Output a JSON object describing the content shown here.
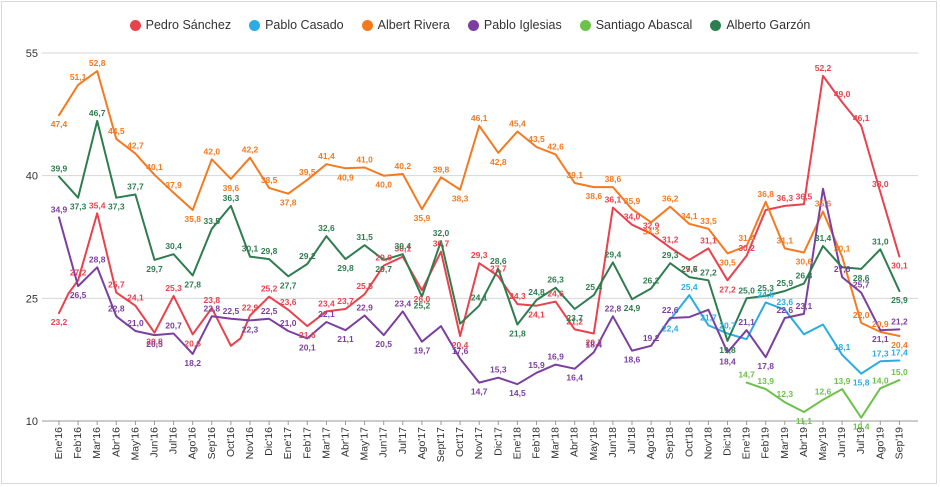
{
  "chart_data": {
    "type": "line",
    "categories": [
      "Ene'16",
      "Feb'16",
      "Mar'16",
      "Abr'16",
      "May'16",
      "Jun'16",
      "Jul'16",
      "Ago'16",
      "Sep'16",
      "Oct'16",
      "Nov'16",
      "Dic'16",
      "Ene'17",
      "Feb'17",
      "Mar'17",
      "Abr'17",
      "May'17",
      "Jun'17",
      "Jul'17",
      "Ago'17",
      "Sept'17",
      "Oct'17",
      "Nov'17",
      "Dic'17",
      "Ene'18",
      "Feb'18",
      "Mar'18",
      "Abr'18",
      "May'18",
      "Jun'18",
      "Jul'18",
      "Ago'18",
      "Sep'18",
      "Oct'18",
      "Nov'18",
      "Dic'18",
      "Ene'19",
      "Feb'19",
      "Mar'19",
      "Abr'19",
      "May'19",
      "Jun'19",
      "Jul'19",
      "Ago'19",
      "Sep'19"
    ],
    "x_tick_labels": [
      "Ene'16",
      "Feb'16",
      "Mar'16",
      "Abr'16",
      "May'16",
      "Jun'16",
      "Jul'16",
      "Ago'16",
      "Sep'16",
      "Oct'16",
      "Nov'16",
      "Dic'16",
      "Ene'17",
      "Feb'17",
      "Mar'17",
      "Abr'17",
      "May'17",
      "Jun'17",
      "Jul'17",
      "Ago'17",
      "Sept'17",
      "Oct'17",
      "Nov'17",
      "Dic'17",
      "Ene'18",
      "Feb'18",
      "Mar'18",
      "Abr'18",
      "May'18",
      "Jun'18",
      "Jul'18",
      "Ago'18",
      "Sep'18",
      "Oct'18",
      "Nov'18",
      "Dic'18",
      "Ene'19",
      "Feb'19",
      "Mar'19",
      "Abr'19",
      "May'19",
      "Jun'19",
      "Jul'19",
      "Ago'19",
      "Sep'19"
    ],
    "ylim": [
      10,
      55
    ],
    "y_ticks": [
      10,
      25,
      40,
      55
    ],
    "grid": "horizontal",
    "legend": "top",
    "series": [
      {
        "name": "Pedro Sánchez",
        "color": "#e8424d",
        "x": [
          0.0,
          0.5,
          1.0,
          2.0,
          3.0,
          4.0,
          5.0,
          6.0,
          7.0,
          8.0,
          9.0,
          9.5,
          10.0,
          11.0,
          12.0,
          13.0,
          14.0,
          15.0,
          16.0,
          17.0,
          18.0,
          19.0,
          20.0,
          21.0,
          22.0,
          22.5,
          23.0,
          24.0,
          25.0,
          26.0,
          27.0,
          28.0,
          29.0,
          30.0,
          31.0,
          32.0,
          33.0,
          34.0,
          35.0,
          36.0,
          37.0,
          38.0,
          39.0,
          40.0,
          41.0,
          42.0,
          43.0,
          44.0
        ],
        "values": [
          23.2,
          25.6,
          27.2,
          35.4,
          25.7,
          24.1,
          20.8,
          25.3,
          20.6,
          23.8,
          19.2,
          20.1,
          22.9,
          25.2,
          23.6,
          21.6,
          23.4,
          23.7,
          25.5,
          29.0,
          30.1,
          26.0,
          30.7,
          20.4,
          29.3,
          28.5,
          27.7,
          24.3,
          24.1,
          24.6,
          21.2,
          20.7,
          36.1,
          34.0,
          32.9,
          31.2,
          29.7,
          31.1,
          27.2,
          30.2,
          35.8,
          36.3,
          36.5,
          52.2,
          49.0,
          46.1,
          38.0,
          30.1
        ],
        "labels": [
          "23,2",
          "",
          "27,2",
          "35,4",
          "25,7",
          "24,1",
          "20,8",
          "25,3",
          "20,6",
          "23,8",
          "",
          "",
          "22,9",
          "25,2",
          "23,6",
          "21,6",
          "23,4",
          "23,7",
          "25,5",
          "29,0",
          "30,1",
          "26,0",
          "30,7",
          "20,4",
          "29,3",
          "",
          "27,7",
          "24,3",
          "24,1",
          "24,6",
          "21,2",
          "20,7",
          "36,1",
          "34,0",
          "32,9",
          "31,2",
          "29,7",
          "31,1",
          "27,2",
          "30,2",
          "",
          "36,3",
          "36,5",
          "52,2",
          "49,0",
          "46,1",
          "38,0",
          "30,1"
        ]
      },
      {
        "name": "Pablo Casado",
        "color": "#2bace2",
        "x": [
          32.0,
          33.0,
          34.0,
          35.0,
          36.0,
          37.0,
          38.0,
          39.0,
          40.0,
          41.0,
          42.0,
          43.0,
          44.0
        ],
        "values": [
          22.4,
          25.4,
          21.7,
          20.7,
          20.0,
          24.5,
          23.6,
          20.6,
          21.8,
          18.1,
          15.8,
          17.3,
          17.4
        ],
        "labels": [
          "22,4",
          "25,4",
          "21,7",
          "20,7",
          "",
          "24,5",
          "23,6",
          "",
          "",
          "18,1",
          "15,8",
          "17,3",
          "17,4"
        ]
      },
      {
        "name": "Albert Rivera",
        "color": "#f47a20",
        "x": [
          0,
          1,
          2,
          3,
          4,
          5,
          6,
          7,
          8,
          9,
          10,
          11,
          12,
          13,
          14,
          15,
          16,
          17,
          18,
          19,
          20,
          21,
          22,
          23,
          24,
          25,
          26,
          27,
          28,
          29,
          30,
          31,
          32,
          33,
          34,
          35,
          36,
          37,
          38,
          39,
          40,
          41,
          42,
          43,
          44
        ],
        "values": [
          47.4,
          51.1,
          52.8,
          44.5,
          42.7,
          40.1,
          37.9,
          35.8,
          42.0,
          39.6,
          42.2,
          38.5,
          37.8,
          39.5,
          41.4,
          40.9,
          41.0,
          40.0,
          40.2,
          35.9,
          39.8,
          38.3,
          46.1,
          42.8,
          45.4,
          43.5,
          42.6,
          39.1,
          38.6,
          38.6,
          35.9,
          34.3,
          36.2,
          34.1,
          33.5,
          30.5,
          31.4,
          36.8,
          31.1,
          30.6,
          35.6,
          30.1,
          22.0,
          20.9,
          20.4
        ],
        "labels": [
          "47,4",
          "51,1",
          "52,8",
          "44,5",
          "42,7",
          "40,1",
          "37,9",
          "35,8",
          "42,0",
          "39,6",
          "42,2",
          "38,5",
          "37,8",
          "39,5",
          "41,4",
          "40,9",
          "41,0",
          "40,0",
          "40,2",
          "35,9",
          "39,8",
          "38,3",
          "46,1",
          "42,8",
          "45,4",
          "43,5",
          "42,6",
          "39,1",
          "38,6",
          "38,6",
          "35,9",
          "34,3",
          "36,2",
          "34,1",
          "33,5",
          "30,5",
          "31,4",
          "36,8",
          "31,1",
          "30,6",
          "35,6",
          "30,1",
          "22,0",
          "20,9",
          "20,4"
        ]
      },
      {
        "name": "Pablo Iglesias",
        "color": "#7b3fa0",
        "x": [
          0,
          1,
          2,
          3,
          4,
          5,
          6,
          7,
          8,
          9,
          10,
          11,
          12,
          13,
          14,
          15,
          16,
          17,
          18,
          19,
          20,
          21,
          22,
          23,
          24,
          25,
          26,
          27,
          28,
          29,
          30,
          31,
          32,
          33,
          34,
          35,
          36,
          37,
          38,
          39,
          40,
          41,
          42,
          43,
          44
        ],
        "values": [
          34.9,
          26.5,
          28.8,
          22.8,
          21.0,
          20.5,
          20.7,
          18.2,
          22.8,
          22.5,
          22.3,
          22.5,
          21.0,
          20.1,
          22.1,
          21.1,
          22.9,
          20.5,
          23.4,
          19.7,
          21.6,
          17.6,
          14.7,
          15.3,
          14.5,
          15.9,
          16.9,
          16.4,
          18.4,
          22.8,
          18.6,
          19.2,
          22.6,
          22.7,
          23.6,
          18.4,
          21.1,
          17.8,
          22.6,
          23.1,
          38.4,
          27.6,
          25.7,
          21.1,
          21.2
        ],
        "labels": [
          "34,9",
          "26,5",
          "28,8",
          "22,8",
          "21,0",
          "20,5",
          "20,7",
          "18,2",
          "22,8",
          "22,5",
          "22,3",
          "22,5",
          "21,0",
          "20,1",
          "22,1",
          "21,1",
          "22,9",
          "20,5",
          "23,4",
          "19,7",
          "",
          "17,6",
          "14,7",
          "15,3",
          "14,5",
          "15,9",
          "16,9",
          "16,4",
          "18,4",
          "22,8",
          "18,6",
          "19,2",
          "22,6",
          "",
          "",
          "18,4",
          "21,1",
          "17,8",
          "22,6",
          "23,1",
          "",
          "27,6",
          "25,7",
          "21,1",
          "21,2"
        ]
      },
      {
        "name": "Santiago Abascal",
        "color": "#6cc24a",
        "x": [
          36,
          37,
          38,
          39,
          40,
          41,
          42,
          43,
          44
        ],
        "values": [
          14.7,
          13.9,
          12.3,
          11.1,
          12.6,
          13.9,
          10.4,
          14.0,
          15.0
        ],
        "labels": [
          "14,7",
          "13,9",
          "12,3",
          "11,1",
          "12,6",
          "13,9",
          "10,4",
          "14,0",
          "15,0"
        ]
      },
      {
        "name": "Alberto Garzón",
        "color": "#2e7d4f",
        "x": [
          0,
          1,
          2,
          3,
          4,
          5,
          6,
          7,
          8,
          9,
          10,
          11,
          12,
          13,
          14,
          15,
          16,
          17,
          18,
          19,
          20,
          21,
          22,
          23,
          24,
          25,
          26,
          27,
          28,
          29,
          30,
          31,
          32,
          33,
          34,
          35,
          36,
          37,
          38,
          39,
          40,
          41,
          42,
          43,
          44
        ],
        "values": [
          39.9,
          37.3,
          46.7,
          37.3,
          37.7,
          29.7,
          30.4,
          27.8,
          33.5,
          36.3,
          30.1,
          29.8,
          27.7,
          29.2,
          32.6,
          29.8,
          31.5,
          29.7,
          30.4,
          25.2,
          32.0,
          21.9,
          24.1,
          28.6,
          21.8,
          24.8,
          26.3,
          23.7,
          25.4,
          29.4,
          24.9,
          26.2,
          29.3,
          27.6,
          27.2,
          19.8,
          25.0,
          25.3,
          25.9,
          26.8,
          31.4,
          28.8,
          28.6,
          31.0,
          25.9
        ],
        "labels": [
          "39,9",
          "37,3",
          "46,7",
          "37,3",
          "37,7",
          "29,7",
          "30,4",
          "27,8",
          "33,5",
          "36,3",
          "30,1",
          "29,8",
          "27,7",
          "29,2",
          "32,6",
          "29,8",
          "31,5",
          "29,7",
          "30,4",
          "25,2",
          "32,0",
          "",
          "24,1",
          "28,6",
          "21,8",
          "24,8",
          "26,3",
          "23,7",
          "25,4",
          "29,4",
          "24,9",
          "26,2",
          "29,3",
          "27,6",
          "27,2",
          "19,8",
          "25,0",
          "25,3",
          "25,9",
          "26,8",
          "31,4",
          "",
          "28,6",
          "31,0",
          "25,9"
        ]
      }
    ]
  }
}
